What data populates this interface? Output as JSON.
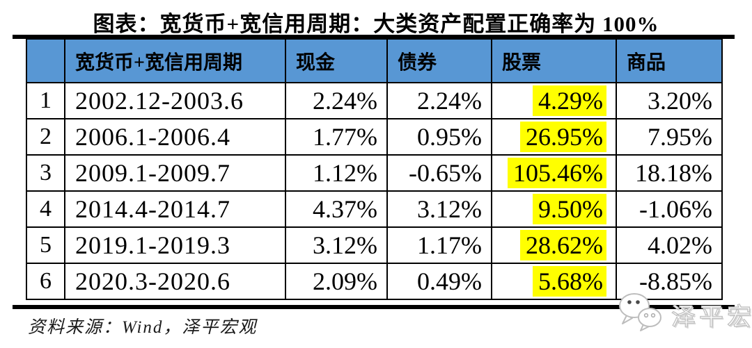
{
  "title": "图表：宽货币+宽信用周期：大类资产配置正确率为 100%",
  "chart_data": {
    "type": "table",
    "title": "宽货币+宽信用周期：大类资产配置正确率为 100%",
    "columns": [
      "",
      "宽货币+宽信用周期",
      "现金",
      "债券",
      "股票",
      "商品"
    ],
    "highlighted_column": "stock",
    "rows": [
      {
        "num": "1",
        "period": "2002.12-2003.6",
        "cash": "2.24%",
        "bond": "2.24%",
        "stock": "4.29%",
        "commodity": "3.20%"
      },
      {
        "num": "2",
        "period": "2006.1-2006.4",
        "cash": "1.77%",
        "bond": "0.95%",
        "stock": "26.95%",
        "commodity": "7.95%"
      },
      {
        "num": "3",
        "period": "2009.1-2009.7",
        "cash": "1.12%",
        "bond": "-0.65%",
        "stock": "105.46%",
        "commodity": "18.18%"
      },
      {
        "num": "4",
        "period": "2014.4-2014.7",
        "cash": "4.37%",
        "bond": "3.12%",
        "stock": "9.50%",
        "commodity": "-1.06%"
      },
      {
        "num": "5",
        "period": "2019.1-2019.3",
        "cash": "3.12%",
        "bond": "1.17%",
        "stock": "28.62%",
        "commodity": "4.02%"
      },
      {
        "num": "6",
        "period": "2020.3-2020.6",
        "cash": "2.09%",
        "bond": "0.49%",
        "stock": "5.68%",
        "commodity": "-8.85%"
      }
    ]
  },
  "footer": {
    "source": "资料来源：Wind，泽平宏观"
  },
  "watermark": {
    "brand": "泽平宏观",
    "icon": "wechat-icon"
  },
  "colors": {
    "header_bg": "#5897D4",
    "highlight": "#FFFF00",
    "rule": "#000000",
    "border": "#000000"
  }
}
